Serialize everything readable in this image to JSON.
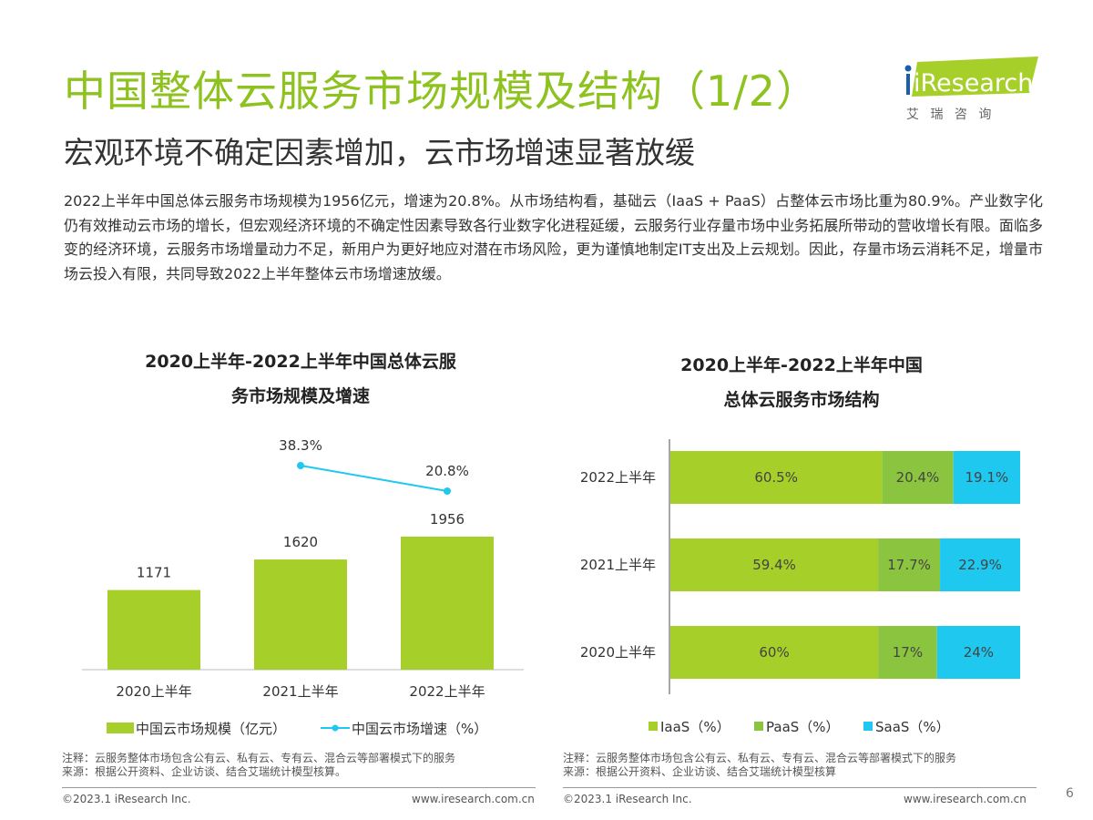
{
  "header": {
    "title": "中国整体云服务市场规模及结构（1/2）",
    "subtitle": "宏观环境不确定因素增加，云市场增速显著放缓",
    "logo_text": "iResearch",
    "logo_subtext": "艾 瑞 咨 询"
  },
  "body_text": "2022上半年中国总体云服务市场规模为1956亿元，增速为20.8%。从市场结构看，基础云（IaaS + PaaS）占整体云市场比重为80.9%。产业数字化仍有效推动云市场的增长，但宏观经济环境的不确定性因素导致各行业数字化进程延缓，云服务行业存量市场中业务拓展所带动的营收增长有限。面临多变的经济环境，云服务市场增量动力不足，新用户为更好地应对潜在市场风险，更为谨慎地制定IT支出及上云规划。因此，存量市场云消耗不足，增量市场云投入有限，共同导致2022上半年整体云市场增速放缓。",
  "chart_data": [
    {
      "type": "bar",
      "title_line1": "2020上半年-2022上半年中国总体云服",
      "title_line2": "务市场规模及增速",
      "categories": [
        "2020上半年",
        "2021上半年",
        "2022上半年"
      ],
      "series": [
        {
          "name": "中国云市场规模（亿元）",
          "type": "bar",
          "values": [
            1171,
            1620,
            1956
          ],
          "labels": [
            "1171",
            "1620",
            "1956"
          ],
          "color": "#a6cf2a"
        },
        {
          "name": "中国云市场增速（%）",
          "type": "line",
          "values": [
            null,
            38.3,
            20.8
          ],
          "labels": [
            "",
            "38.3%",
            "20.8%"
          ],
          "color": "#1ec8ef"
        }
      ],
      "legend": "bottom",
      "grid": false
    },
    {
      "type": "bar",
      "orientation": "horizontal",
      "stacked": true,
      "title_line1": "2020上半年-2022上半年中国",
      "title_line2": "总体云服务市场结构",
      "categories": [
        "2022上半年",
        "2021上半年",
        "2020上半年"
      ],
      "series": [
        {
          "name": "IaaS（%）",
          "values": [
            60.5,
            59.4,
            60
          ],
          "labels": [
            "60.5%",
            "59.4%",
            "60%"
          ],
          "color": "#a6cf2a"
        },
        {
          "name": "PaaS（%）",
          "values": [
            20.4,
            17.7,
            17
          ],
          "labels": [
            "20.4%",
            "17.7%",
            "17%"
          ],
          "color": "#8bc43f"
        },
        {
          "name": "SaaS（%）",
          "values": [
            19.1,
            22.9,
            24
          ],
          "labels": [
            "19.1%",
            "22.9%",
            "24%"
          ],
          "color": "#1ec8ef"
        }
      ],
      "legend": "bottom",
      "grid": false
    }
  ],
  "notes": {
    "left_note": "注释：云服务整体市场包含公有云、私有云、专有云、混合云等部署模式下的服务",
    "left_source": "来源：根据公开资料、企业访谈、结合艾瑞统计模型核算。",
    "right_note": "注释：云服务整体市场包含公有云、私有云、专有云、混合云等部署模式下的服务",
    "right_source": "来源：根据公开资料、企业访谈、结合艾瑞统计模型核算"
  },
  "footer": {
    "copyright": "©2023.1 iResearch Inc.",
    "website": "www.iresearch.com.cn",
    "page": "6"
  }
}
